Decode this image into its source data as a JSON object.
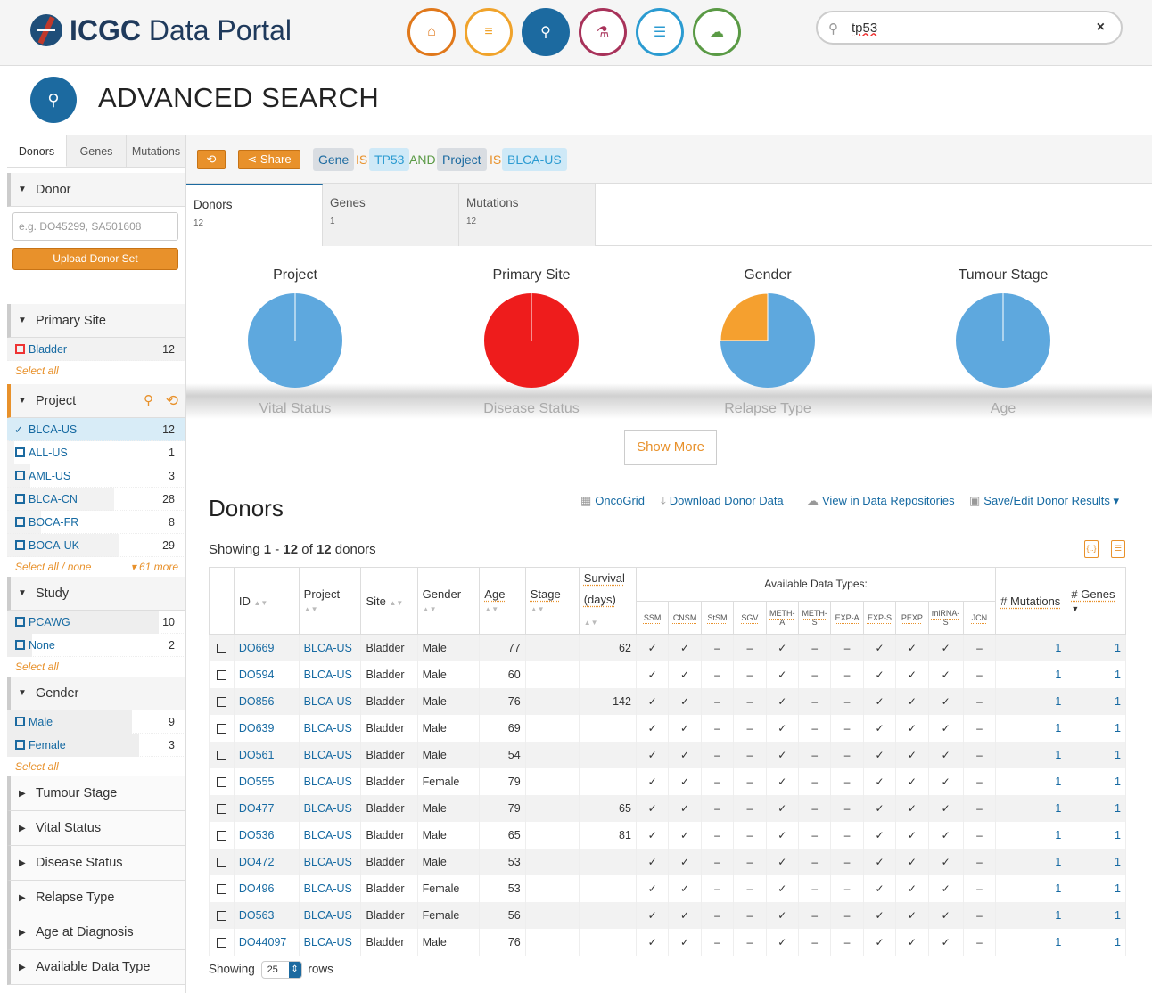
{
  "header": {
    "logo_bold": "ICGC",
    "logo_rest": " Data Portal",
    "search_value": "tp53",
    "clear_symbol": "×"
  },
  "nav_icons": [
    {
      "name": "home-icon",
      "color": "#e0781b",
      "glyph": "⌂"
    },
    {
      "name": "menu-icon",
      "color": "#f0a32b",
      "glyph": "≡"
    },
    {
      "name": "search-icon",
      "color": "#1c6aa0",
      "glyph": "⚲"
    },
    {
      "name": "flask-icon",
      "color": "#a8325a",
      "glyph": "⚗"
    },
    {
      "name": "database-icon",
      "color": "#2b9bd1",
      "glyph": "☰"
    },
    {
      "name": "cloud-download-icon",
      "color": "#5a9a45",
      "glyph": "☁"
    }
  ],
  "page_title": "ADVANCED SEARCH",
  "sidebar": {
    "tabs": [
      "Donors",
      "Genes",
      "Mutations"
    ],
    "donor": {
      "title": "Donor",
      "placeholder": "e.g. DO45299, SA501608",
      "upload_label": "Upload Donor Set"
    },
    "primary_site": {
      "title": "Primary Site",
      "items": [
        {
          "label": "Bladder",
          "count": "12"
        }
      ],
      "select_all": "Select all"
    },
    "project": {
      "title": "Project",
      "items": [
        {
          "label": "BLCA-US",
          "count": "12",
          "selected": true
        },
        {
          "label": "ALL-US",
          "count": "1"
        },
        {
          "label": "AML-US",
          "count": "3"
        },
        {
          "label": "BLCA-CN",
          "count": "28"
        },
        {
          "label": "BOCA-FR",
          "count": "8"
        },
        {
          "label": "BOCA-UK",
          "count": "29"
        }
      ],
      "select_all": "Select all / none",
      "more": "▾ 61 more"
    },
    "study": {
      "title": "Study",
      "items": [
        {
          "label": "PCAWG",
          "count": "10"
        },
        {
          "label": "None",
          "count": "2"
        }
      ],
      "select_all": "Select all"
    },
    "gender": {
      "title": "Gender",
      "items": [
        {
          "label": "Male",
          "count": "9"
        },
        {
          "label": "Female",
          "count": "3"
        }
      ],
      "select_all": "Select all"
    },
    "collapsed": [
      "Tumour Stage",
      "Vital Status",
      "Disease Status",
      "Relapse Type",
      "Age at Diagnosis",
      "Available Data Type"
    ]
  },
  "query": {
    "undo_symbol": "⟲",
    "share_label": "Share",
    "field1": "Gene",
    "op1": "IS",
    "val1": "TP53",
    "and": "AND",
    "field2": "Project",
    "op2": "IS",
    "val2": "BLCA-US"
  },
  "result_tabs": [
    {
      "label": "Donors",
      "count": "12"
    },
    {
      "label": "Genes",
      "count": "1"
    },
    {
      "label": "Mutations",
      "count": "12"
    }
  ],
  "pies": [
    {
      "title": "Project",
      "color": "#5ea8de"
    },
    {
      "title": "Primary Site",
      "color": "#ee1c1c"
    },
    {
      "title": "Gender",
      "color": "#5ea8de",
      "slice_color": "#f5a02f",
      "male": 9,
      "female": 3
    },
    {
      "title": "Tumour Stage",
      "color": "#5ea8de"
    }
  ],
  "faded_titles": [
    "Vital Status",
    "Disease Status",
    "Relapse Type",
    "Age"
  ],
  "show_more": "Show More",
  "donors": {
    "title": "Donors",
    "links": {
      "oncogrid": "OncoGrid",
      "download": "Download Donor Data",
      "repos": "View in Data Repositories",
      "save": "Save/Edit Donor Results ▾"
    },
    "showing_prefix": "Showing ",
    "showing_from": "1",
    "showing_dash": " - ",
    "showing_to": "12",
    "showing_of": " of ",
    "showing_total": "12",
    "showing_suffix": " donors",
    "columns": {
      "id": "ID",
      "project": "Project",
      "site": "Site",
      "gender": "Gender",
      "age": "Age",
      "stage": "Stage",
      "survival": "Survival",
      "survival_unit": "(days)",
      "data_types": "Available Data Types:",
      "mutations": "# Mutations",
      "genes": "# Genes"
    },
    "data_types": [
      "SSM",
      "CNSM",
      "StSM",
      "SGV",
      "METH-A",
      "METH-S",
      "EXP-A",
      "EXP-S",
      "PEXP",
      "miRNA-S",
      "JCN"
    ],
    "rows": [
      {
        "id": "DO669",
        "project": "BLCA-US",
        "site": "Bladder",
        "gender": "Male",
        "age": "77",
        "stage": "",
        "survival": "62",
        "types": "✓✓––✓––✓✓✓–",
        "mutations": "1",
        "genes": "1"
      },
      {
        "id": "DO594",
        "project": "BLCA-US",
        "site": "Bladder",
        "gender": "Male",
        "age": "60",
        "stage": "",
        "survival": "",
        "types": "✓✓––✓––✓✓✓–",
        "mutations": "1",
        "genes": "1"
      },
      {
        "id": "DO856",
        "project": "BLCA-US",
        "site": "Bladder",
        "gender": "Male",
        "age": "76",
        "stage": "",
        "survival": "142",
        "types": "✓✓––✓––✓✓✓–",
        "mutations": "1",
        "genes": "1"
      },
      {
        "id": "DO639",
        "project": "BLCA-US",
        "site": "Bladder",
        "gender": "Male",
        "age": "69",
        "stage": "",
        "survival": "",
        "types": "✓✓––✓––✓✓✓–",
        "mutations": "1",
        "genes": "1"
      },
      {
        "id": "DO561",
        "project": "BLCA-US",
        "site": "Bladder",
        "gender": "Male",
        "age": "54",
        "stage": "",
        "survival": "",
        "types": "✓✓––✓––✓✓✓–",
        "mutations": "1",
        "genes": "1"
      },
      {
        "id": "DO555",
        "project": "BLCA-US",
        "site": "Bladder",
        "gender": "Female",
        "age": "79",
        "stage": "",
        "survival": "",
        "types": "✓✓––✓––✓✓✓–",
        "mutations": "1",
        "genes": "1"
      },
      {
        "id": "DO477",
        "project": "BLCA-US",
        "site": "Bladder",
        "gender": "Male",
        "age": "79",
        "stage": "",
        "survival": "65",
        "types": "✓✓––✓––✓✓✓–",
        "mutations": "1",
        "genes": "1"
      },
      {
        "id": "DO536",
        "project": "BLCA-US",
        "site": "Bladder",
        "gender": "Male",
        "age": "65",
        "stage": "",
        "survival": "81",
        "types": "✓✓––✓––✓✓✓–",
        "mutations": "1",
        "genes": "1"
      },
      {
        "id": "DO472",
        "project": "BLCA-US",
        "site": "Bladder",
        "gender": "Male",
        "age": "53",
        "stage": "",
        "survival": "",
        "types": "✓✓––✓––✓✓✓–",
        "mutations": "1",
        "genes": "1"
      },
      {
        "id": "DO496",
        "project": "BLCA-US",
        "site": "Bladder",
        "gender": "Female",
        "age": "53",
        "stage": "",
        "survival": "",
        "types": "✓✓––✓––✓✓✓–",
        "mutations": "1",
        "genes": "1"
      },
      {
        "id": "DO563",
        "project": "BLCA-US",
        "site": "Bladder",
        "gender": "Female",
        "age": "56",
        "stage": "",
        "survival": "",
        "types": "✓✓––✓––✓✓✓–",
        "mutations": "1",
        "genes": "1"
      },
      {
        "id": "DO44097",
        "project": "BLCA-US",
        "site": "Bladder",
        "gender": "Male",
        "age": "76",
        "stage": "",
        "survival": "",
        "types": "✓✓––✓––✓✓✓–",
        "mutations": "1",
        "genes": "1"
      }
    ],
    "pager_prefix": "Showing",
    "page_size": "25",
    "pager_suffix": "rows"
  }
}
